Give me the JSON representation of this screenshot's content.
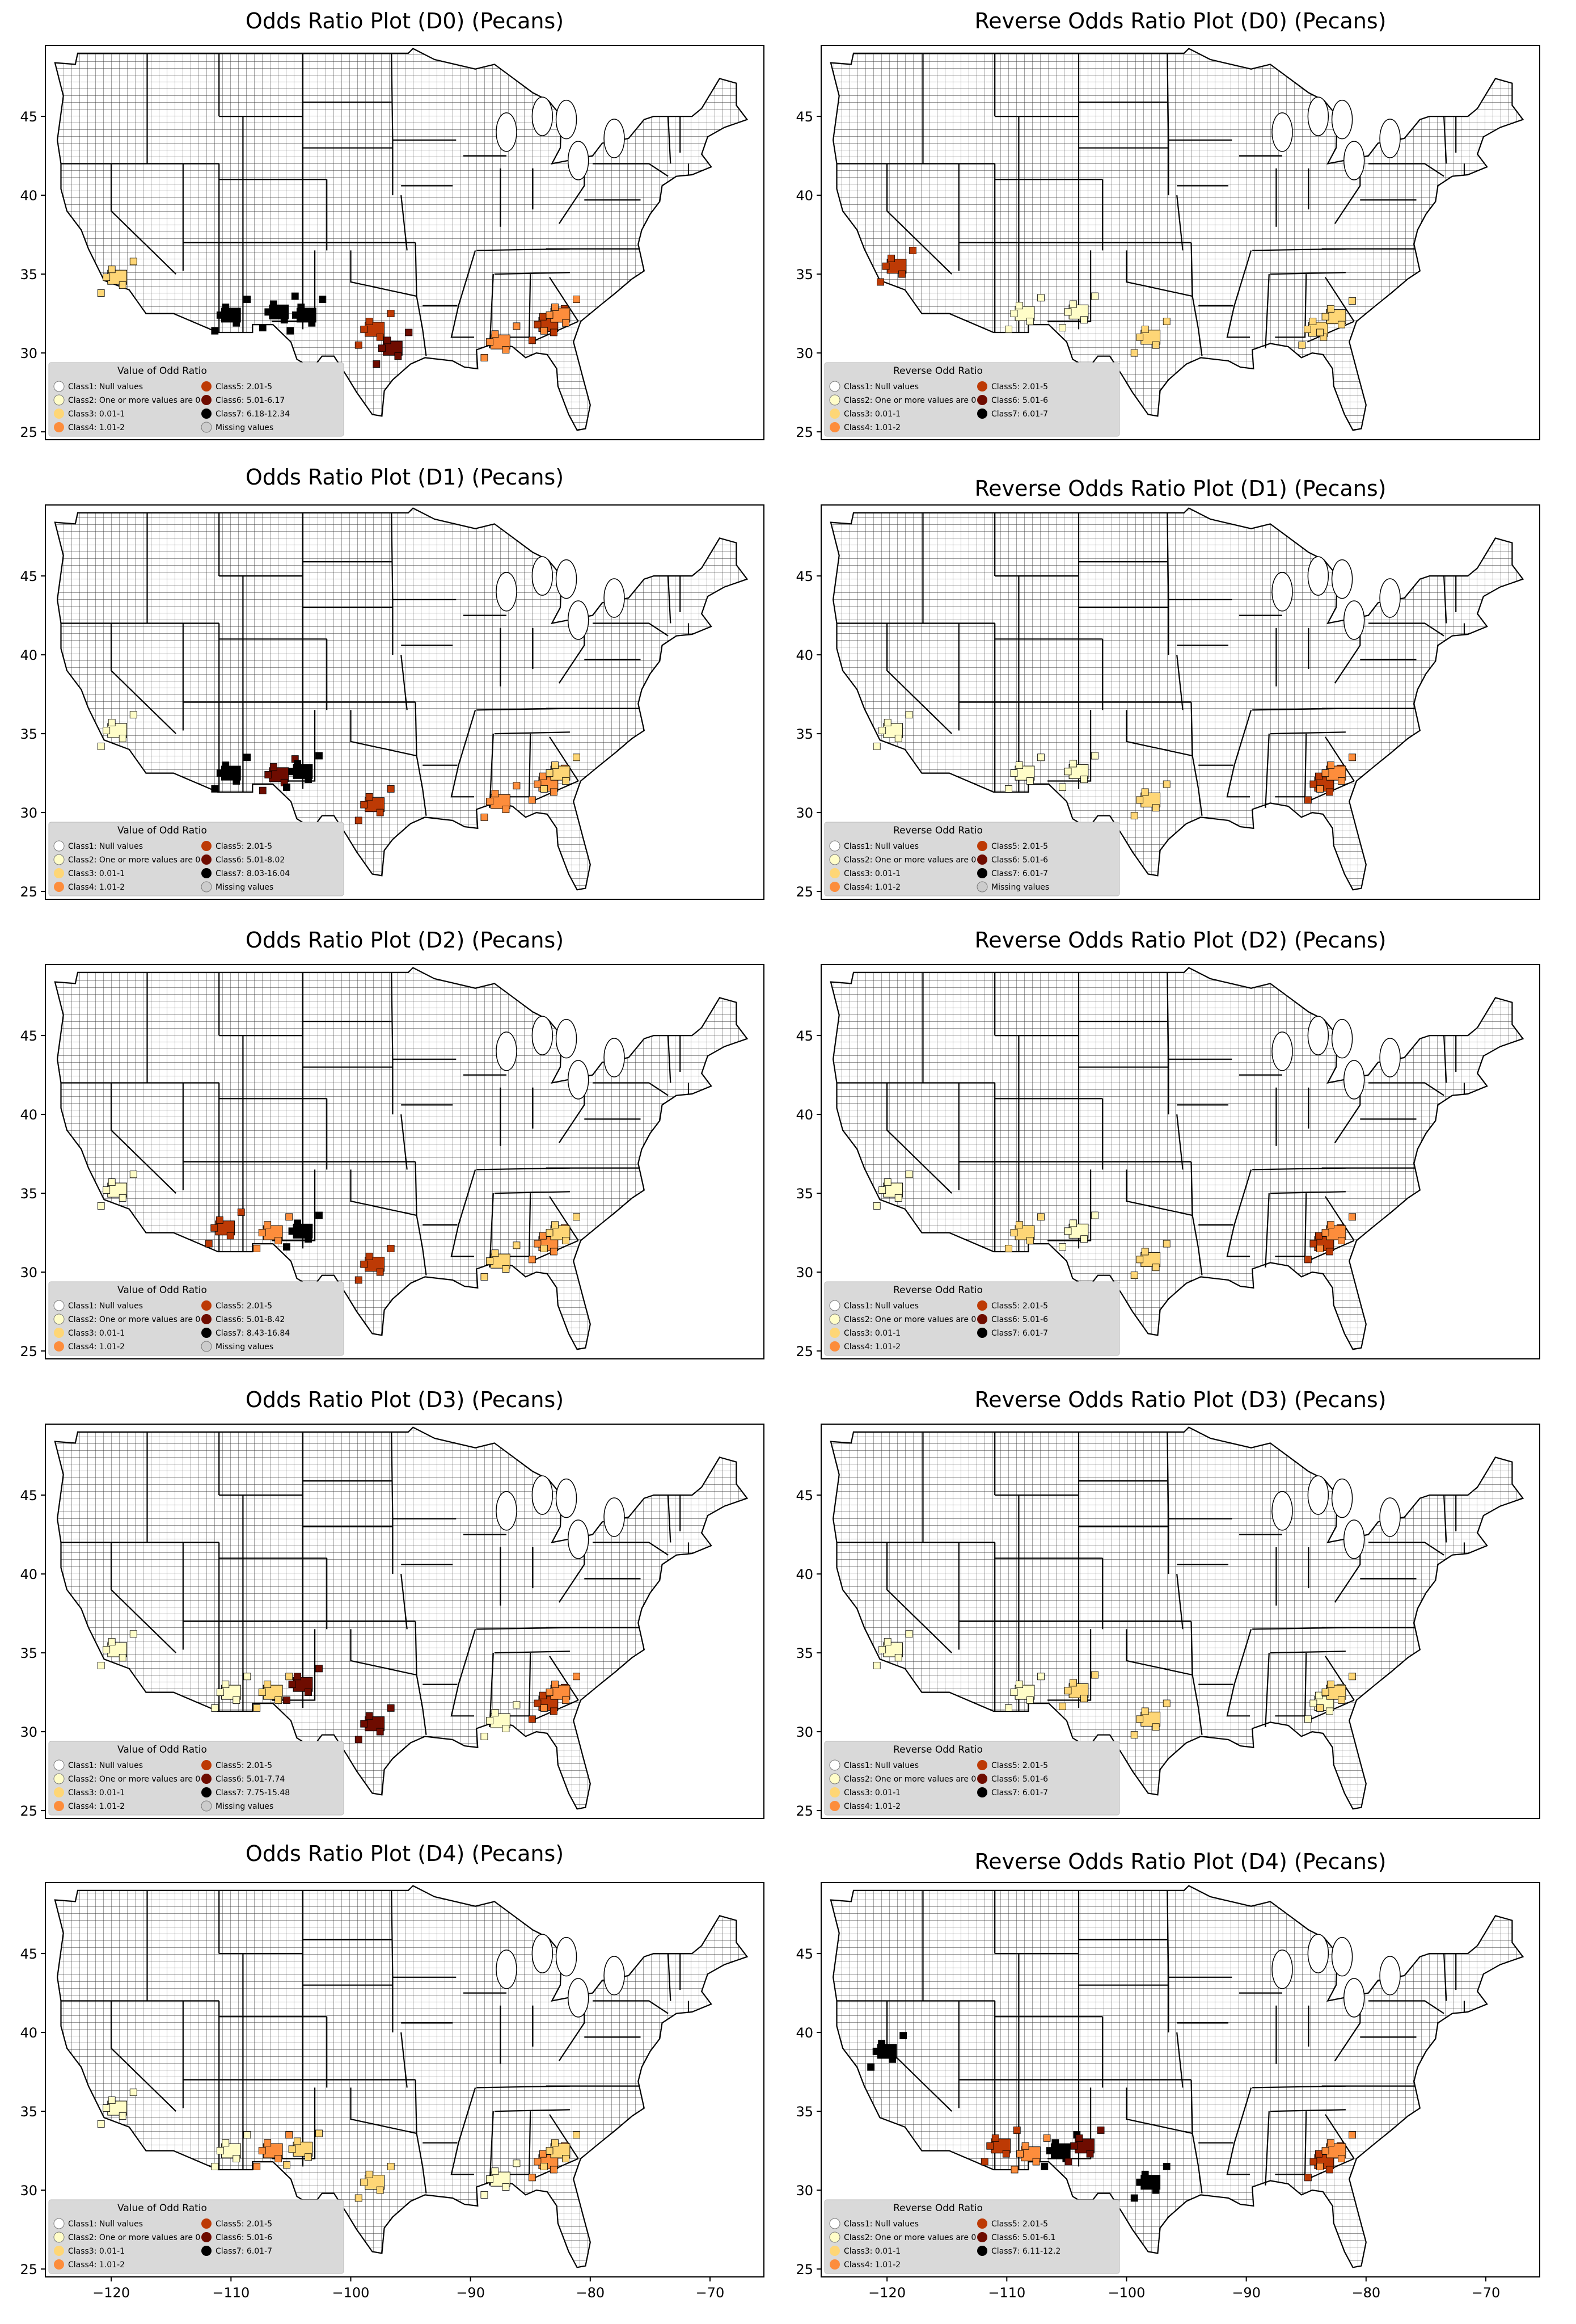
{
  "colors": {
    "null": "#ffffff",
    "zero": "#fffdc8",
    "class3": "#fed676",
    "class4": "#fd8d3c",
    "class5": "#bd3a05",
    "class6": "#6e0c00",
    "class7": "#000000",
    "missing": "#cccccc",
    "legend_bg": "#d9d9d9"
  },
  "x_ticks": [
    "−120",
    "−110",
    "−100",
    "−90",
    "−80",
    "−70"
  ],
  "y_ticks": [
    "45",
    "40",
    "35",
    "30",
    "25"
  ],
  "chart_data": [
    {
      "type": "map",
      "title": "Odds Ratio Plot (D0) (Pecans)",
      "xlim": [
        -125.5,
        -65.5
      ],
      "ylim": [
        24.5,
        49.5
      ],
      "legend": {
        "title": "Value of Odd Ratio",
        "entries": [
          {
            "label": "Class1: Null values",
            "color": "null"
          },
          {
            "label": "Class2: One or more values are 0",
            "color": "zero"
          },
          {
            "label": "Class3: 0.01-1",
            "color": "class3"
          },
          {
            "label": "Class4: 1.01-2",
            "color": "class4"
          },
          {
            "label": "Class5: 2.01-5",
            "color": "class5"
          },
          {
            "label": "Class6: 5.01-6.17",
            "color": "class6"
          },
          {
            "label": "Class7: 6.18-12.34",
            "color": "class7"
          },
          {
            "label": "Missing values",
            "color": "missing"
          }
        ]
      },
      "highlighted_areas": [
        {
          "lon": -119.5,
          "lat": 34.8,
          "class": "class3"
        },
        {
          "lon": -110,
          "lat": 32.4,
          "class": "class7"
        },
        {
          "lon": -106,
          "lat": 32.6,
          "class": "class7"
        },
        {
          "lon": -103.7,
          "lat": 32.4,
          "class": "class7"
        },
        {
          "lon": -98,
          "lat": 31.5,
          "class": "class5"
        },
        {
          "lon": -96.5,
          "lat": 30.3,
          "class": "class6"
        },
        {
          "lon": -87.5,
          "lat": 30.7,
          "class": "class4"
        },
        {
          "lon": -83.5,
          "lat": 31.8,
          "class": "class5"
        },
        {
          "lon": -82.5,
          "lat": 32.4,
          "class": "class4"
        }
      ]
    },
    {
      "type": "map",
      "title": "Reverse Odds Ratio Plot (D0) (Pecans)",
      "xlim": [
        -125.5,
        -65.5
      ],
      "ylim": [
        24.5,
        49.5
      ],
      "legend": {
        "title": "Reverse Odd Ratio",
        "entries": [
          {
            "label": "Class1: Null values",
            "color": "null"
          },
          {
            "label": "Class2: One or more values are 0",
            "color": "zero"
          },
          {
            "label": "Class3: 0.01-1",
            "color": "class3"
          },
          {
            "label": "Class4: 1.01-2",
            "color": "class4"
          },
          {
            "label": "Class5: 2.01-5",
            "color": "class5"
          },
          {
            "label": "Class6: 5.01-6",
            "color": "class6"
          },
          {
            "label": "Class7: 6.01-7",
            "color": "class7"
          }
        ]
      },
      "highlighted_areas": [
        {
          "lon": -119.2,
          "lat": 35.5,
          "class": "class5"
        },
        {
          "lon": -108.5,
          "lat": 32.5,
          "class": "zero"
        },
        {
          "lon": -104,
          "lat": 32.6,
          "class": "zero"
        },
        {
          "lon": -98,
          "lat": 31,
          "class": "class3"
        },
        {
          "lon": -84,
          "lat": 31.5,
          "class": "class3"
        },
        {
          "lon": -82.5,
          "lat": 32.3,
          "class": "class3"
        }
      ]
    },
    {
      "type": "map",
      "title": "Odds Ratio Plot (D1) (Pecans)",
      "xlim": [
        -125.5,
        -65.5
      ],
      "ylim": [
        24.5,
        49.5
      ],
      "legend": {
        "title": "Value of Odd Ratio",
        "entries": [
          {
            "label": "Class1: Null values",
            "color": "null"
          },
          {
            "label": "Class2: One or more values are 0",
            "color": "zero"
          },
          {
            "label": "Class3: 0.01-1",
            "color": "class3"
          },
          {
            "label": "Class4: 1.01-2",
            "color": "class4"
          },
          {
            "label": "Class5: 2.01-5",
            "color": "class5"
          },
          {
            "label": "Class6: 5.01-8.02",
            "color": "class6"
          },
          {
            "label": "Class7: 8.03-16.04",
            "color": "class7"
          },
          {
            "label": "Missing values",
            "color": "missing"
          }
        ]
      },
      "highlighted_areas": [
        {
          "lon": -119.5,
          "lat": 35.2,
          "class": "zero"
        },
        {
          "lon": -110,
          "lat": 32.5,
          "class": "class7"
        },
        {
          "lon": -106,
          "lat": 32.4,
          "class": "class6"
        },
        {
          "lon": -104,
          "lat": 32.6,
          "class": "class7"
        },
        {
          "lon": -98,
          "lat": 30.5,
          "class": "class5"
        },
        {
          "lon": -87.5,
          "lat": 30.7,
          "class": "class4"
        },
        {
          "lon": -83.5,
          "lat": 31.8,
          "class": "class4"
        },
        {
          "lon": -82.5,
          "lat": 32.5,
          "class": "class3"
        }
      ]
    },
    {
      "type": "map",
      "title": "Reverse Odds Ratio Plot (D1) (Pecans)",
      "xlim": [
        -125.5,
        -65.5
      ],
      "ylim": [
        24.5,
        49.5
      ],
      "legend": {
        "title": "Reverse Odd Ratio",
        "entries": [
          {
            "label": "Class1: Null values",
            "color": "null"
          },
          {
            "label": "Class2: One or more values are 0",
            "color": "zero"
          },
          {
            "label": "Class3: 0.01-1",
            "color": "class3"
          },
          {
            "label": "Class4: 1.01-2",
            "color": "class4"
          },
          {
            "label": "Class5: 2.01-5",
            "color": "class5"
          },
          {
            "label": "Class6: 5.01-6",
            "color": "class6"
          },
          {
            "label": "Class7: 6.01-7",
            "color": "class7"
          },
          {
            "label": "Missing values",
            "color": "missing"
          }
        ]
      },
      "highlighted_areas": [
        {
          "lon": -119.5,
          "lat": 35.2,
          "class": "zero"
        },
        {
          "lon": -108.5,
          "lat": 32.5,
          "class": "zero"
        },
        {
          "lon": -104,
          "lat": 32.6,
          "class": "zero"
        },
        {
          "lon": -98,
          "lat": 30.8,
          "class": "class3"
        },
        {
          "lon": -83.5,
          "lat": 31.8,
          "class": "class5"
        },
        {
          "lon": -82.5,
          "lat": 32.5,
          "class": "class4"
        }
      ]
    },
    {
      "type": "map",
      "title": "Odds Ratio Plot (D2) (Pecans)",
      "xlim": [
        -125.5,
        -65.5
      ],
      "ylim": [
        24.5,
        49.5
      ],
      "legend": {
        "title": "Value of Odd Ratio",
        "entries": [
          {
            "label": "Class1: Null values",
            "color": "null"
          },
          {
            "label": "Class2: One or more values are 0",
            "color": "zero"
          },
          {
            "label": "Class3: 0.01-1",
            "color": "class3"
          },
          {
            "label": "Class4: 1.01-2",
            "color": "class4"
          },
          {
            "label": "Class5: 2.01-5",
            "color": "class5"
          },
          {
            "label": "Class6: 5.01-8.42",
            "color": "class6"
          },
          {
            "label": "Class7: 8.43-16.84",
            "color": "class7"
          },
          {
            "label": "Missing values",
            "color": "missing"
          }
        ]
      },
      "highlighted_areas": [
        {
          "lon": -119.5,
          "lat": 35.2,
          "class": "zero"
        },
        {
          "lon": -110.5,
          "lat": 32.8,
          "class": "class5"
        },
        {
          "lon": -106.5,
          "lat": 32.5,
          "class": "class4"
        },
        {
          "lon": -104,
          "lat": 32.6,
          "class": "class7"
        },
        {
          "lon": -98,
          "lat": 30.5,
          "class": "class5"
        },
        {
          "lon": -87.5,
          "lat": 30.7,
          "class": "class3"
        },
        {
          "lon": -83.5,
          "lat": 31.8,
          "class": "class4"
        },
        {
          "lon": -82.5,
          "lat": 32.5,
          "class": "class3"
        }
      ]
    },
    {
      "type": "map",
      "title": "Reverse Odds Ratio Plot (D2) (Pecans)",
      "xlim": [
        -125.5,
        -65.5
      ],
      "ylim": [
        24.5,
        49.5
      ],
      "legend": {
        "title": "Reverse Odd Ratio",
        "entries": [
          {
            "label": "Class1: Null values",
            "color": "null"
          },
          {
            "label": "Class2: One or more values are 0",
            "color": "zero"
          },
          {
            "label": "Class3: 0.01-1",
            "color": "class3"
          },
          {
            "label": "Class4: 1.01-2",
            "color": "class4"
          },
          {
            "label": "Class5: 2.01-5",
            "color": "class5"
          },
          {
            "label": "Class6: 5.01-6",
            "color": "class6"
          },
          {
            "label": "Class7: 6.01-7",
            "color": "class7"
          }
        ]
      },
      "highlighted_areas": [
        {
          "lon": -119.5,
          "lat": 35.2,
          "class": "zero"
        },
        {
          "lon": -108.5,
          "lat": 32.5,
          "class": "class3"
        },
        {
          "lon": -104,
          "lat": 32.6,
          "class": "zero"
        },
        {
          "lon": -98,
          "lat": 30.8,
          "class": "class3"
        },
        {
          "lon": -83.5,
          "lat": 31.8,
          "class": "class5"
        },
        {
          "lon": -82.5,
          "lat": 32.5,
          "class": "class4"
        }
      ]
    },
    {
      "type": "map",
      "title": "Odds Ratio Plot (D3) (Pecans)",
      "xlim": [
        -125.5,
        -65.5
      ],
      "ylim": [
        24.5,
        49.5
      ],
      "legend": {
        "title": "Value of Odd Ratio",
        "entries": [
          {
            "label": "Class1: Null values",
            "color": "null"
          },
          {
            "label": "Class2: One or more values are 0",
            "color": "zero"
          },
          {
            "label": "Class3: 0.01-1",
            "color": "class3"
          },
          {
            "label": "Class4: 1.01-2",
            "color": "class4"
          },
          {
            "label": "Class5: 2.01-5",
            "color": "class5"
          },
          {
            "label": "Class6: 5.01-7.74",
            "color": "class6"
          },
          {
            "label": "Class7: 7.75-15.48",
            "color": "class7"
          },
          {
            "label": "Missing values",
            "color": "missing"
          }
        ]
      },
      "highlighted_areas": [
        {
          "lon": -119.5,
          "lat": 35.2,
          "class": "zero"
        },
        {
          "lon": -110,
          "lat": 32.5,
          "class": "zero"
        },
        {
          "lon": -106.5,
          "lat": 32.5,
          "class": "class3"
        },
        {
          "lon": -104,
          "lat": 33,
          "class": "class6"
        },
        {
          "lon": -98,
          "lat": 30.5,
          "class": "class6"
        },
        {
          "lon": -87.5,
          "lat": 30.7,
          "class": "zero"
        },
        {
          "lon": -83.5,
          "lat": 31.8,
          "class": "class5"
        },
        {
          "lon": -82.5,
          "lat": 32.5,
          "class": "class4"
        }
      ]
    },
    {
      "type": "map",
      "title": "Reverse Odds Ratio Plot (D3) (Pecans)",
      "xlim": [
        -125.5,
        -65.5
      ],
      "ylim": [
        24.5,
        49.5
      ],
      "legend": {
        "title": "Reverse Odd Ratio",
        "entries": [
          {
            "label": "Class1: Null values",
            "color": "null"
          },
          {
            "label": "Class2: One or more values are 0",
            "color": "zero"
          },
          {
            "label": "Class3: 0.01-1",
            "color": "class3"
          },
          {
            "label": "Class4: 1.01-2",
            "color": "class4"
          },
          {
            "label": "Class5: 2.01-5",
            "color": "class5"
          },
          {
            "label": "Class6: 5.01-6",
            "color": "class6"
          },
          {
            "label": "Class7: 6.01-7",
            "color": "class7"
          }
        ]
      },
      "highlighted_areas": [
        {
          "lon": -119.5,
          "lat": 35.2,
          "class": "zero"
        },
        {
          "lon": -108.5,
          "lat": 32.5,
          "class": "zero"
        },
        {
          "lon": -104,
          "lat": 32.6,
          "class": "class3"
        },
        {
          "lon": -98,
          "lat": 30.8,
          "class": "class3"
        },
        {
          "lon": -83.5,
          "lat": 31.8,
          "class": "zero"
        },
        {
          "lon": -82.5,
          "lat": 32.5,
          "class": "class3"
        }
      ]
    },
    {
      "type": "map",
      "title": "Odds Ratio Plot (D4) (Pecans)",
      "xlim": [
        -125.5,
        -65.5
      ],
      "ylim": [
        24.5,
        49.5
      ],
      "legend": {
        "title": "Value of Odd Ratio",
        "entries": [
          {
            "label": "Class1: Null values",
            "color": "null"
          },
          {
            "label": "Class2: One or more values are 0",
            "color": "zero"
          },
          {
            "label": "Class3: 0.01-1",
            "color": "class3"
          },
          {
            "label": "Class4: 1.01-2",
            "color": "class4"
          },
          {
            "label": "Class5: 2.01-5",
            "color": "class5"
          },
          {
            "label": "Class6: 5.01-6",
            "color": "class6"
          },
          {
            "label": "Class7: 6.01-7",
            "color": "class7"
          }
        ]
      },
      "highlighted_areas": [
        {
          "lon": -119.5,
          "lat": 35.2,
          "class": "zero"
        },
        {
          "lon": -110,
          "lat": 32.5,
          "class": "zero"
        },
        {
          "lon": -106.5,
          "lat": 32.5,
          "class": "class4"
        },
        {
          "lon": -104,
          "lat": 32.6,
          "class": "class3"
        },
        {
          "lon": -98,
          "lat": 30.5,
          "class": "class3"
        },
        {
          "lon": -87.5,
          "lat": 30.7,
          "class": "zero"
        },
        {
          "lon": -83.5,
          "lat": 31.8,
          "class": "class4"
        },
        {
          "lon": -82.5,
          "lat": 32.5,
          "class": "class3"
        }
      ]
    },
    {
      "type": "map",
      "title": "Reverse Odds Ratio Plot (D4) (Pecans)",
      "xlim": [
        -125.5,
        -65.5
      ],
      "ylim": [
        24.5,
        49.5
      ],
      "legend": {
        "title": "Reverse Odd Ratio",
        "entries": [
          {
            "label": "Class1: Null values",
            "color": "null"
          },
          {
            "label": "Class2: One or more values are 0",
            "color": "zero"
          },
          {
            "label": "Class3: 0.01-1",
            "color": "class3"
          },
          {
            "label": "Class4: 1.01-2",
            "color": "class4"
          },
          {
            "label": "Class5: 2.01-5",
            "color": "class5"
          },
          {
            "label": "Class6: 5.01-6.1",
            "color": "class6"
          },
          {
            "label": "Class7: 6.11-12.2",
            "color": "class7"
          }
        ]
      },
      "highlighted_areas": [
        {
          "lon": -120,
          "lat": 38.8,
          "class": "class7"
        },
        {
          "lon": -110.5,
          "lat": 32.8,
          "class": "class5"
        },
        {
          "lon": -108,
          "lat": 32.3,
          "class": "class4"
        },
        {
          "lon": -105.5,
          "lat": 32.5,
          "class": "class7"
        },
        {
          "lon": -103.5,
          "lat": 32.8,
          "class": "class6"
        },
        {
          "lon": -98,
          "lat": 30.5,
          "class": "class7"
        },
        {
          "lon": -83.5,
          "lat": 31.8,
          "class": "class5"
        },
        {
          "lon": -82.5,
          "lat": 32.5,
          "class": "class4"
        }
      ]
    }
  ]
}
